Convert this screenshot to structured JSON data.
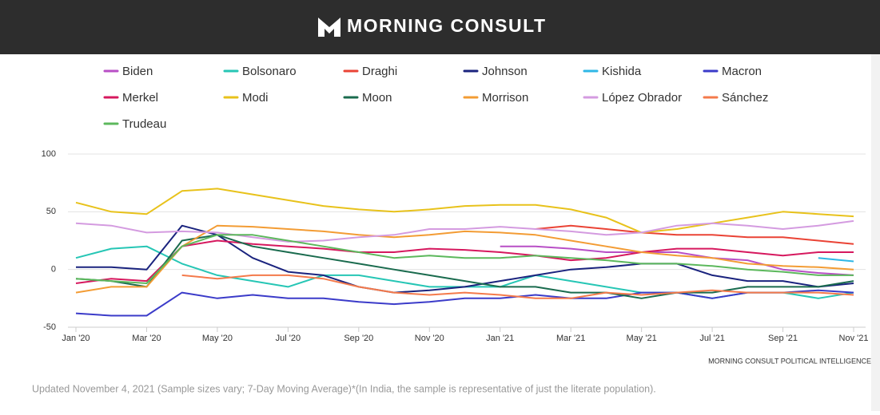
{
  "header": {
    "brand": "MORNING CONSULT"
  },
  "chart_data": {
    "type": "line",
    "x": [
      "2020-01",
      "2020-02",
      "2020-03",
      "2020-04",
      "2020-05",
      "2020-06",
      "2020-07",
      "2020-08",
      "2020-09",
      "2020-10",
      "2020-11",
      "2020-12",
      "2021-01",
      "2021-02",
      "2021-03",
      "2021-04",
      "2021-05",
      "2021-06",
      "2021-07",
      "2021-08",
      "2021-09",
      "2021-10",
      "2021-11"
    ],
    "xticks": [
      {
        "value": "2020-01",
        "label": "Jan '20"
      },
      {
        "value": "2020-03",
        "label": "Mar '20"
      },
      {
        "value": "2020-05",
        "label": "May '20"
      },
      {
        "value": "2020-07",
        "label": "Jul '20"
      },
      {
        "value": "2020-09",
        "label": "Sep '20"
      },
      {
        "value": "2020-11",
        "label": "Nov '20"
      },
      {
        "value": "2021-01",
        "label": "Jan '21"
      },
      {
        "value": "2021-03",
        "label": "Mar '21"
      },
      {
        "value": "2021-05",
        "label": "May '21"
      },
      {
        "value": "2021-07",
        "label": "Jul '21"
      },
      {
        "value": "2021-09",
        "label": "Sep '21"
      },
      {
        "value": "2021-11",
        "label": "Nov '21"
      }
    ],
    "ylim": [
      -50,
      100
    ],
    "yticks": [
      -50,
      0,
      50,
      100
    ],
    "grid": true,
    "series": [
      {
        "name": "Biden",
        "color": "#b84fc6",
        "values": [
          null,
          null,
          null,
          null,
          null,
          null,
          null,
          null,
          null,
          null,
          null,
          null,
          20,
          20,
          18,
          15,
          15,
          15,
          10,
          8,
          0,
          -3,
          -5
        ]
      },
      {
        "name": "Bolsonaro",
        "color": "#26c6b5",
        "values": [
          10,
          18,
          20,
          5,
          -5,
          -10,
          -15,
          -5,
          -5,
          -10,
          -15,
          -15,
          -15,
          -5,
          -10,
          -15,
          -20,
          -20,
          -25,
          -20,
          -20,
          -25,
          -20
        ]
      },
      {
        "name": "Draghi",
        "color": "#ea4335",
        "values": [
          null,
          null,
          null,
          null,
          null,
          null,
          null,
          null,
          null,
          null,
          null,
          null,
          null,
          35,
          38,
          35,
          32,
          30,
          30,
          28,
          28,
          25,
          22
        ]
      },
      {
        "name": "Johnson",
        "color": "#1a237e",
        "values": [
          2,
          2,
          0,
          38,
          30,
          10,
          -2,
          -5,
          -15,
          -20,
          -18,
          -15,
          -10,
          -5,
          0,
          2,
          5,
          5,
          -5,
          -10,
          -10,
          -15,
          -12
        ]
      },
      {
        "name": "Kishida",
        "color": "#2fb7e6",
        "values": [
          null,
          null,
          null,
          null,
          null,
          null,
          null,
          null,
          null,
          null,
          null,
          null,
          null,
          null,
          null,
          null,
          null,
          null,
          null,
          null,
          null,
          10,
          7
        ]
      },
      {
        "name": "Macron",
        "color": "#3b3bc9",
        "values": [
          -38,
          -40,
          -40,
          -20,
          -25,
          -22,
          -25,
          -25,
          -28,
          -30,
          -28,
          -25,
          -25,
          -22,
          -25,
          -25,
          -20,
          -20,
          -25,
          -20,
          -20,
          -18,
          -20
        ]
      },
      {
        "name": "Merkel",
        "color": "#d6185e",
        "values": [
          -12,
          -8,
          -10,
          20,
          25,
          22,
          20,
          18,
          15,
          15,
          18,
          17,
          15,
          12,
          8,
          10,
          15,
          18,
          18,
          15,
          12,
          15,
          15
        ]
      },
      {
        "name": "Modi",
        "color": "#e8c21b",
        "values": [
          58,
          50,
          48,
          68,
          70,
          65,
          60,
          55,
          52,
          50,
          52,
          55,
          56,
          56,
          52,
          45,
          32,
          35,
          40,
          45,
          50,
          48,
          46
        ]
      },
      {
        "name": "Moon",
        "color": "#1a6b4e",
        "values": [
          -8,
          -10,
          -15,
          25,
          30,
          20,
          15,
          10,
          5,
          0,
          -5,
          -10,
          -15,
          -15,
          -20,
          -20,
          -25,
          -20,
          -20,
          -15,
          -15,
          -15,
          -10
        ]
      },
      {
        "name": "Morrison",
        "color": "#f39c34",
        "values": [
          -20,
          -15,
          -15,
          20,
          38,
          37,
          35,
          33,
          30,
          28,
          30,
          33,
          32,
          30,
          25,
          20,
          15,
          12,
          10,
          5,
          3,
          2,
          0
        ]
      },
      {
        "name": "López Obrador",
        "color": "#d49be0",
        "values": [
          40,
          38,
          32,
          33,
          32,
          28,
          24,
          25,
          28,
          30,
          35,
          35,
          37,
          35,
          33,
          30,
          32,
          38,
          40,
          38,
          35,
          38,
          42
        ]
      },
      {
        "name": "Sánchez",
        "color": "#f47a4b",
        "values": [
          null,
          null,
          null,
          -5,
          -8,
          -5,
          -5,
          -8,
          -15,
          -20,
          -22,
          -20,
          -22,
          -25,
          -25,
          -20,
          -22,
          -20,
          -18,
          -20,
          -20,
          -20,
          -22
        ]
      },
      {
        "name": "Trudeau",
        "color": "#5cb85c",
        "values": [
          -8,
          -10,
          -12,
          20,
          30,
          30,
          25,
          20,
          15,
          10,
          12,
          10,
          10,
          12,
          10,
          8,
          5,
          5,
          3,
          0,
          -2,
          -5,
          -5
        ]
      }
    ]
  },
  "footer": {
    "source": "MORNING CONSULT POLITICAL INTELLIGENCE",
    "note": "Updated November 4, 2021 (Sample sizes vary; 7-Day Moving Average)*(In India, the sample is representative of just the literate population)."
  }
}
